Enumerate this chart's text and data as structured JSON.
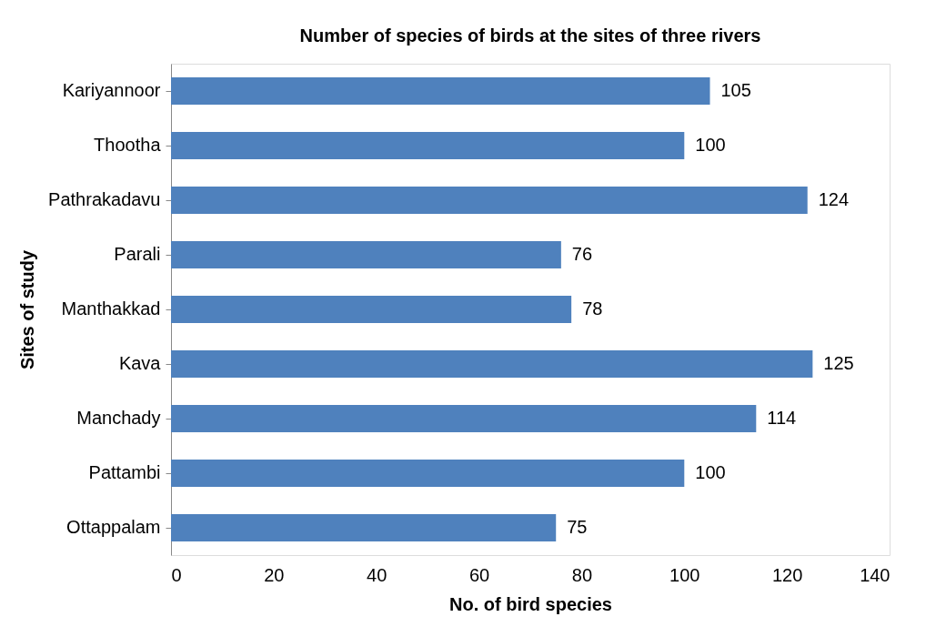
{
  "chart_data": {
    "type": "bar",
    "orientation": "horizontal",
    "title": "Number of species of birds at the sites of three rivers",
    "xlabel": "No. of bird species",
    "ylabel": "Sites of study",
    "categories": [
      "Kariyannoor",
      "Thootha",
      "Pathrakadavu",
      "Parali",
      "Manthakkad",
      "Kava",
      "Manchady",
      "Pattambi",
      "Ottappalam"
    ],
    "values": [
      105,
      100,
      124,
      76,
      78,
      125,
      114,
      100,
      75
    ],
    "color": "#4f81bd",
    "xlim": [
      0,
      140
    ],
    "xticks": [
      0,
      20,
      40,
      60,
      80,
      100,
      120,
      140
    ],
    "data_labels": true,
    "grid": false
  }
}
